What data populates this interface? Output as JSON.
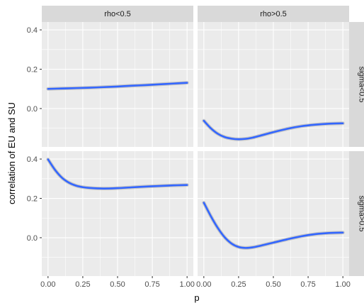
{
  "chart_data": {
    "type": "line",
    "xlabel": "p",
    "ylabel": "correlation of EU and SU",
    "xlim": [
      -0.045,
      1.045
    ],
    "ylim": [
      -0.195,
      0.44
    ],
    "x_ticks": [
      "0.00",
      "0.25",
      "0.50",
      "0.75",
      "1.00"
    ],
    "x_tick_values": [
      0,
      0.25,
      0.5,
      0.75,
      1.0
    ],
    "y_ticks": [
      "0.0",
      "0.2",
      "0.4"
    ],
    "y_tick_values": [
      0.0,
      0.2,
      0.4
    ],
    "grid": true,
    "legend": "none",
    "column_strips": [
      "rho<0.5",
      "rho>0.5"
    ],
    "row_strips": [
      "sigma<0.5",
      "sigma>0.5"
    ],
    "line_color": "#3366ff",
    "ribbon_color": "#999999",
    "panel_background": "#ebebeb",
    "strip_background": "#d9d9d9",
    "panels": [
      {
        "col": "rho<0.5",
        "row": "sigma<0.5",
        "x": [
          0,
          0.1,
          0.2,
          0.3,
          0.4,
          0.5,
          0.6,
          0.7,
          0.8,
          0.9,
          1.0
        ],
        "y": [
          0.1,
          0.102,
          0.104,
          0.106,
          0.109,
          0.112,
          0.116,
          0.119,
          0.123,
          0.127,
          0.131
        ]
      },
      {
        "col": "rho>0.5",
        "row": "sigma<0.5",
        "x": [
          0,
          0.05,
          0.1,
          0.15,
          0.2,
          0.25,
          0.3,
          0.35,
          0.4,
          0.5,
          0.6,
          0.7,
          0.8,
          0.9,
          1.0
        ],
        "y": [
          -0.062,
          -0.1,
          -0.128,
          -0.145,
          -0.153,
          -0.156,
          -0.154,
          -0.148,
          -0.139,
          -0.12,
          -0.103,
          -0.09,
          -0.082,
          -0.077,
          -0.075
        ]
      },
      {
        "col": "rho<0.5",
        "row": "sigma>0.5",
        "x": [
          0,
          0.05,
          0.1,
          0.15,
          0.2,
          0.25,
          0.3,
          0.4,
          0.5,
          0.6,
          0.7,
          0.8,
          0.9,
          1.0
        ],
        "y": [
          0.398,
          0.345,
          0.305,
          0.28,
          0.265,
          0.257,
          0.253,
          0.25,
          0.252,
          0.256,
          0.26,
          0.263,
          0.266,
          0.268
        ]
      },
      {
        "col": "rho>0.5",
        "row": "sigma>0.5",
        "x": [
          0,
          0.05,
          0.1,
          0.15,
          0.2,
          0.25,
          0.3,
          0.35,
          0.4,
          0.5,
          0.6,
          0.7,
          0.8,
          0.9,
          1.0
        ],
        "y": [
          0.178,
          0.11,
          0.05,
          0.002,
          -0.03,
          -0.047,
          -0.052,
          -0.049,
          -0.042,
          -0.025,
          -0.008,
          0.007,
          0.018,
          0.024,
          0.026
        ]
      }
    ]
  }
}
